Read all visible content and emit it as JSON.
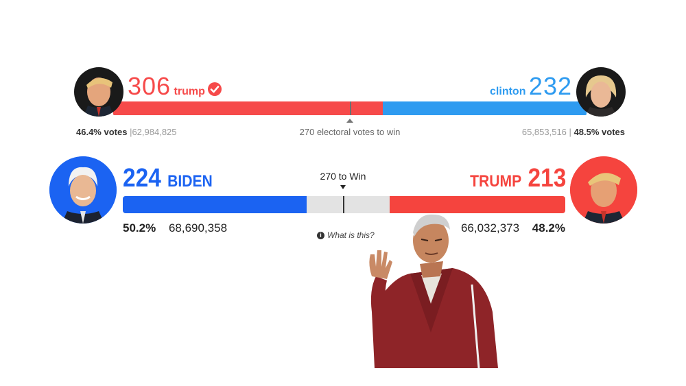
{
  "race2016": {
    "left": {
      "electoral": "306",
      "name": "trump",
      "popular_pct": "46.4% votes",
      "popular_votes": "62,984,825",
      "winner": true,
      "portrait": "trump-portrait",
      "color": "#f64a4a"
    },
    "right": {
      "electoral": "232",
      "name": "clinton",
      "popular_pct": "48.5% votes",
      "popular_votes": "65,853,516",
      "portrait": "clinton-portrait",
      "color": "#2e9bf0"
    },
    "threshold_label": "270 electoral votes to win",
    "separator": "|"
  },
  "race2020": {
    "left": {
      "electoral": "224",
      "name": "BIDEN",
      "popular_pct": "50.2%",
      "popular_votes": "68,690,358",
      "portrait": "biden-portrait",
      "color": "#1b63f2"
    },
    "right": {
      "electoral": "213",
      "name": "TRUMP",
      "popular_pct": "48.2%",
      "popular_votes": "66,032,373",
      "portrait": "trump-portrait",
      "color": "#f5443e"
    },
    "threshold_label": "270 to Win",
    "info_link": "What is this?",
    "info_icon": "info-icon"
  },
  "overlay": {
    "icon": "man-in-red-tracksuit-cutout"
  }
}
